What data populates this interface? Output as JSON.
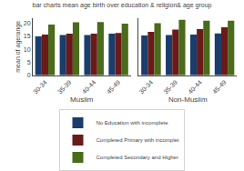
{
  "chart_data": [
    {
      "type": "bar",
      "title": "bar charts mean age birth over education & religion& age group",
      "ylabel": "mean of agerange",
      "xlabel": "Muslim",
      "categories": [
        "30-34",
        "35-39",
        "40-44",
        "45-49"
      ],
      "series": [
        {
          "name": "No Education with incomplete",
          "color": "#1a3d6b",
          "values": [
            15.0,
            15.5,
            15.5,
            16.0
          ]
        },
        {
          "name": "Completed Primary with incomplet",
          "color": "#6b1a1a",
          "values": [
            15.7,
            16.0,
            16.0,
            16.3
          ]
        },
        {
          "name": "Completed Secondary and Higher",
          "color": "#4a6b1a",
          "values": [
            19.5,
            20.4,
            20.5,
            19.9
          ]
        }
      ],
      "ylim": [
        0,
        22
      ],
      "yticks": [
        0,
        5,
        10,
        15,
        20
      ],
      "grid": false,
      "legend": "bottom"
    },
    {
      "type": "bar",
      "xlabel": "Non-Muslim",
      "categories": [
        "30-34",
        "35-39",
        "40-44",
        "45-49"
      ],
      "series": [
        {
          "name": "No Education with incomplete",
          "color": "#1a3d6b",
          "values": [
            15.3,
            15.5,
            15.7,
            16.1
          ]
        },
        {
          "name": "Completed Primary with incomplet",
          "color": "#6b1a1a",
          "values": [
            16.7,
            17.6,
            17.8,
            18.5
          ]
        },
        {
          "name": "Completed Secondary and Higher",
          "color": "#4a6b1a",
          "values": [
            20.1,
            21.4,
            21.0,
            21.0
          ]
        }
      ],
      "ylim": [
        0,
        22
      ],
      "yticks": [
        0,
        5,
        10,
        15,
        20
      ],
      "grid": false,
      "tick_labels": "x",
      "legend": "bottom"
    }
  ]
}
